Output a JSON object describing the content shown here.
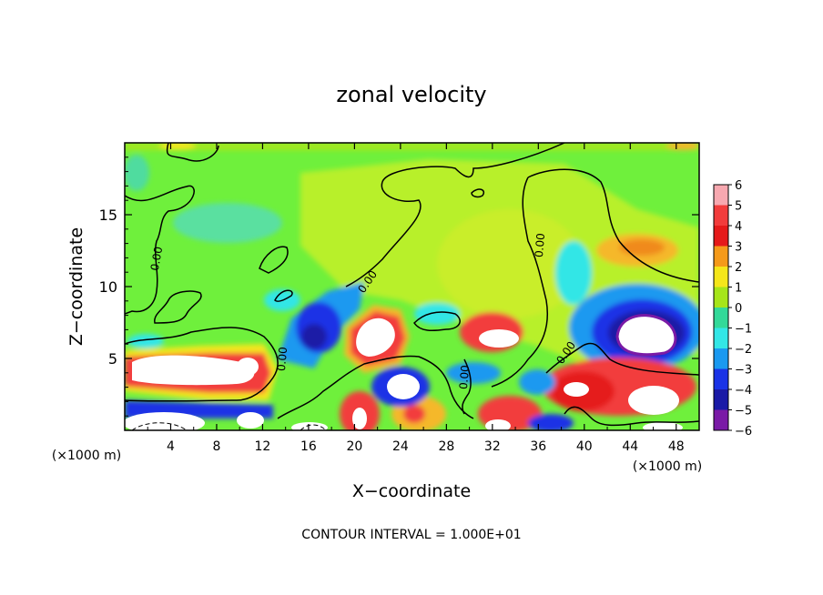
{
  "chart_data": {
    "type": "heatmap",
    "title": "zonal velocity",
    "xlabel": "X−coordinate",
    "ylabel": "Z−coordinate",
    "x_unit": "(×1000 m)",
    "x_unit_right": "(×1000 m)",
    "footer": "CONTOUR INTERVAL = 1.000E+01",
    "xlim": [
      0,
      50
    ],
    "ylim": [
      0,
      20
    ],
    "x_ticks": [
      4,
      8,
      12,
      16,
      20,
      24,
      28,
      32,
      36,
      40,
      44,
      48
    ],
    "y_ticks": [
      5,
      10,
      15
    ],
    "contour_labels": [
      "0.00",
      "0.00",
      "0.00",
      "0.00",
      "0.00"
    ],
    "colorbar": {
      "ticks": [
        "6",
        "5",
        "4",
        "3",
        "2",
        "1",
        "0",
        "−1",
        "−2",
        "−3",
        "−4",
        "−5",
        "−6"
      ],
      "colors": [
        "#f7a8b0",
        "#f23c3c",
        "#e51a1a",
        "#f59a1a",
        "#f5e61a",
        "#a6e51a",
        "#3ddb3d",
        "#33d999",
        "#33e6e6",
        "#1a99f0",
        "#1a33e6",
        "#1a1aa6",
        "#7a1aa6"
      ]
    },
    "colors": {
      "background_field": "#6ff03c",
      "saturated_out_of_range": "#ffffff",
      "contour_line": "#000000"
    }
  }
}
